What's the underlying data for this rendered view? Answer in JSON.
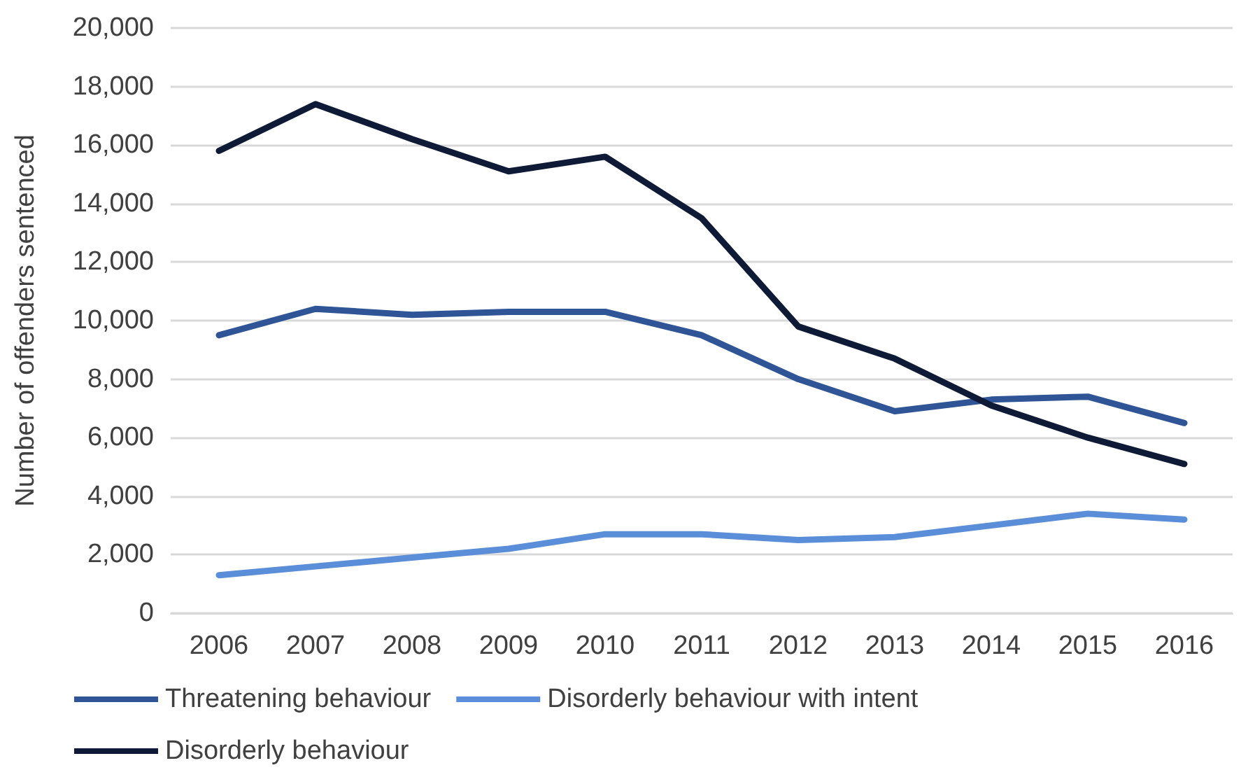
{
  "chart_data": {
    "type": "line",
    "ylabel": "Number of offenders sentenced",
    "categories": [
      "2006",
      "2007",
      "2008",
      "2009",
      "2010",
      "2011",
      "2012",
      "2013",
      "2014",
      "2015",
      "2016"
    ],
    "series": [
      {
        "name": "Threatening behaviour",
        "color": "#2f5597",
        "values": [
          9500,
          10400,
          10200,
          10300,
          10300,
          9500,
          8000,
          6900,
          7300,
          7400,
          6500
        ]
      },
      {
        "name": "Disorderly behaviour with intent",
        "color": "#5b8ed8",
        "values": [
          1300,
          1600,
          1900,
          2200,
          2700,
          2700,
          2500,
          2600,
          3000,
          3400,
          3200
        ]
      },
      {
        "name": "Disorderly behaviour",
        "color": "#0e1a36",
        "values": [
          15800,
          17400,
          16200,
          15100,
          15600,
          13500,
          9800,
          8700,
          7100,
          6000,
          5100
        ]
      }
    ],
    "ylim": [
      0,
      20000
    ],
    "yticks": [
      0,
      {
        "value": 2000,
        "label": "2,000"
      },
      {
        "value": 4000,
        "label": "4,000"
      },
      {
        "value": 6000,
        "label": "6,000"
      },
      {
        "value": 8000,
        "label": "8,000"
      },
      {
        "value": 10000,
        "label": "10,000"
      },
      {
        "value": 12000,
        "label": "12,000"
      },
      {
        "value": 14000,
        "label": "14,000"
      },
      {
        "value": 16000,
        "label": "16,000"
      },
      {
        "value": 18000,
        "label": "18,000"
      },
      {
        "value": 20000,
        "label": "20,000"
      }
    ],
    "grid": "y",
    "legend": "bottom left",
    "marker": "none",
    "line_style": "solid"
  }
}
